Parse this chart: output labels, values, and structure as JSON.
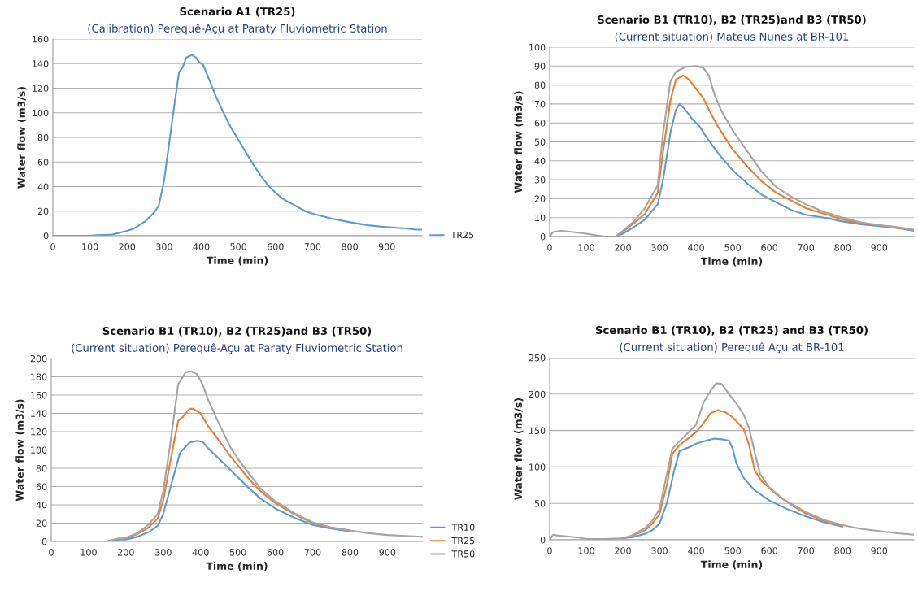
{
  "chart_data": [
    {
      "type": "line",
      "title": "Scenario A1 (TR25)",
      "subtitle": "(Calibration) Perequê-Açu at Paraty Fluviometric Station",
      "xlabel": "Time (min)",
      "ylabel": "Water flow (m3/s)",
      "xlim": [
        0,
        995
      ],
      "xticks": [
        0,
        100,
        200,
        300,
        400,
        500,
        600,
        700,
        800,
        900
      ],
      "ylim": [
        0,
        160
      ],
      "yticks": [
        0,
        20,
        40,
        60,
        80,
        100,
        120,
        140,
        160
      ],
      "grid": "y",
      "legend": "bottom right",
      "marker": "none",
      "line_style": "solid",
      "series": [
        {
          "name": "TR25",
          "color": "#5b9bd5",
          "x": [
            0,
            100,
            120,
            160,
            200,
            220,
            250,
            270,
            285,
            300,
            320,
            340,
            350,
            360,
            375,
            385,
            395,
            405,
            420,
            440,
            460,
            480,
            500,
            520,
            540,
            560,
            580,
            600,
            620,
            650,
            680,
            700,
            750,
            800,
            850,
            900,
            950,
            980,
            995
          ],
          "values": [
            0,
            0,
            0.5,
            1,
            4,
            6,
            12,
            18,
            24,
            45,
            90,
            133,
            137,
            145,
            147,
            145,
            141,
            139,
            128,
            113,
            100,
            88,
            78,
            68,
            58,
            49,
            41,
            35,
            30,
            25,
            20,
            18,
            14,
            11,
            8.5,
            7,
            6,
            5,
            5
          ]
        }
      ]
    },
    {
      "type": "line",
      "title": "Scenario B1 (TR10), B2 (TR25)and B3 (TR50)",
      "subtitle": "(Current situation) Mateus Nunes at BR-101",
      "xlabel": "Time (min)",
      "ylabel": "Water flow (m3/s)",
      "xlim": [
        0,
        995
      ],
      "xticks": [
        0,
        100,
        200,
        300,
        400,
        500,
        600,
        700,
        800,
        900
      ],
      "ylim": [
        0,
        100
      ],
      "yticks": [
        0,
        10,
        20,
        30,
        40,
        50,
        60,
        70,
        80,
        90,
        100
      ],
      "grid": "y",
      "marker": "none",
      "line_style": "solid",
      "series": [
        {
          "color": "#5b9bd5",
          "x": [
            180,
            200,
            230,
            260,
            295,
            310,
            330,
            345,
            355,
            370,
            390,
            410,
            430,
            460,
            500,
            540,
            580,
            620,
            660,
            700,
            750,
            800,
            850,
            900,
            950,
            995
          ],
          "values": [
            0,
            1.5,
            5,
            9,
            17,
            30,
            55,
            67,
            70,
            67,
            62,
            58,
            52,
            44,
            35,
            28,
            22,
            18,
            14,
            11.5,
            10,
            8,
            6.5,
            5.5,
            4.5,
            3
          ]
        },
        {
          "color": "#ed7d31",
          "x": [
            180,
            200,
            230,
            260,
            295,
            310,
            330,
            345,
            365,
            380,
            400,
            420,
            440,
            460,
            500,
            540,
            580,
            620,
            660,
            700,
            750,
            800,
            850,
            900,
            950,
            995
          ],
          "values": [
            0,
            2.5,
            7,
            12,
            23,
            45,
            72,
            83,
            85,
            83,
            78,
            73,
            65,
            58,
            46,
            37,
            29,
            23,
            19,
            15,
            12,
            9,
            7,
            6,
            4.5,
            3.5
          ]
        },
        {
          "color": "#a5a5a5",
          "x": [
            0,
            10,
            30,
            60,
            100,
            130,
            150,
            180,
            200,
            230,
            260,
            295,
            310,
            330,
            345,
            370,
            400,
            420,
            435,
            450,
            470,
            500,
            540,
            580,
            620,
            660,
            700,
            750,
            800,
            850,
            900,
            950,
            995
          ],
          "values": [
            0,
            2.5,
            3,
            2.5,
            1.5,
            0.5,
            0,
            0,
            3,
            8,
            15,
            27,
            55,
            82,
            87,
            89.5,
            90,
            89,
            85,
            75,
            66,
            56,
            45,
            34,
            26,
            21,
            17,
            13,
            10,
            7.5,
            6,
            5,
            3.5
          ]
        }
      ]
    },
    {
      "type": "line",
      "title": "Scenario B1 (TR10), B2 (TR25)and B3 (TR50)",
      "subtitle": "(Current situation) Perequê-Açu at Paraty Fluviometric Station",
      "xlabel": "Time (min)",
      "ylabel": "Water flow (m3/s)",
      "xlim": [
        0,
        995
      ],
      "xticks": [
        0,
        100,
        200,
        300,
        400,
        500,
        600,
        700,
        800,
        900
      ],
      "ylim": [
        0,
        200
      ],
      "yticks": [
        0,
        20,
        40,
        60,
        80,
        100,
        120,
        140,
        160,
        180,
        200
      ],
      "grid": "y",
      "legend": "bottom right",
      "marker": "none",
      "line_style": "solid",
      "series": [
        {
          "name": "TR10",
          "color": "#5b9bd5",
          "x": [
            150,
            180,
            200,
            230,
            260,
            285,
            300,
            320,
            345,
            370,
            390,
            405,
            420,
            450,
            480,
            500,
            530,
            560,
            600,
            650,
            700,
            750,
            800
          ],
          "values": [
            0,
            2,
            2,
            5,
            10,
            17,
            30,
            60,
            97,
            108,
            110,
            109,
            102,
            90,
            78,
            70,
            58,
            47,
            36,
            26,
            18,
            14,
            11
          ]
        },
        {
          "name": "TR25",
          "color": "#ed7d31",
          "x": [
            150,
            180,
            200,
            230,
            260,
            285,
            300,
            320,
            340,
            350,
            370,
            380,
            400,
            420,
            450,
            480,
            500,
            530,
            560,
            600,
            650,
            700,
            750,
            800
          ],
          "values": [
            0,
            3,
            3,
            8,
            15,
            25,
            45,
            90,
            132,
            135,
            145,
            145,
            140,
            126,
            110,
            93,
            83,
            68,
            55,
            42,
            30,
            20,
            15,
            12
          ]
        },
        {
          "name": "TR50",
          "color": "#a5a5a5",
          "x": [
            0,
            100,
            150,
            180,
            200,
            230,
            260,
            285,
            300,
            320,
            340,
            360,
            375,
            390,
            405,
            420,
            450,
            480,
            500,
            530,
            560,
            600,
            650,
            700,
            750,
            800,
            850,
            900,
            950,
            995
          ],
          "values": [
            0,
            0,
            0,
            3,
            4,
            9,
            18,
            30,
            55,
            110,
            172,
            185,
            186,
            183,
            172,
            155,
            128,
            103,
            90,
            74,
            58,
            44,
            31,
            21,
            15,
            12,
            9,
            7,
            6,
            5
          ]
        }
      ]
    },
    {
      "type": "line",
      "title": "Scenario B1 (TR10), B2 (TR25) and B3 (TR50)",
      "subtitle": "(Current situation) Perequê Açu at BR-101",
      "xlabel": "Time (min)",
      "ylabel": "Water flow (m3/s)",
      "xlim": [
        0,
        995
      ],
      "xticks": [
        0,
        100,
        200,
        300,
        400,
        500,
        600,
        700,
        800,
        900
      ],
      "ylim": [
        0,
        250
      ],
      "yticks": [
        0,
        50,
        100,
        150,
        200,
        250
      ],
      "grid": "y",
      "marker": "none",
      "line_style": "solid",
      "series": [
        {
          "color": "#5b9bd5",
          "x": [
            200,
            230,
            260,
            280,
            300,
            320,
            340,
            355,
            380,
            400,
            420,
            450,
            470,
            490,
            500,
            510,
            530,
            560,
            600,
            650,
            700,
            750,
            800
          ],
          "values": [
            2,
            4,
            8,
            13,
            22,
            50,
            95,
            122,
            127,
            132,
            135,
            139,
            138,
            136,
            125,
            105,
            85,
            68,
            54,
            42,
            32,
            24,
            18
          ]
        },
        {
          "color": "#ed7d31",
          "x": [
            200,
            230,
            260,
            280,
            300,
            320,
            335,
            355,
            380,
            400,
            420,
            440,
            460,
            480,
            500,
            530,
            545,
            560,
            580,
            620,
            660,
            700,
            750,
            800
          ],
          "values": [
            2,
            6,
            13,
            22,
            35,
            75,
            118,
            130,
            140,
            148,
            160,
            174,
            178,
            175,
            168,
            152,
            130,
            95,
            80,
            62,
            48,
            36,
            26,
            19
          ]
        },
        {
          "color": "#a5a5a5",
          "x": [
            0,
            10,
            20,
            40,
            80,
            100,
            150,
            200,
            230,
            260,
            280,
            300,
            320,
            335,
            360,
            380,
            400,
            420,
            440,
            455,
            470,
            490,
            510,
            530,
            545,
            560,
            575,
            600,
            640,
            700,
            750,
            800,
            850,
            900,
            950,
            995
          ],
          "values": [
            0,
            7,
            6,
            5,
            3,
            1,
            1,
            2,
            7,
            16,
            26,
            42,
            90,
            125,
            138,
            148,
            158,
            188,
            205,
            215,
            214,
            200,
            187,
            172,
            153,
            120,
            90,
            72,
            55,
            38,
            27,
            20,
            15,
            12,
            9,
            7
          ]
        }
      ]
    }
  ]
}
